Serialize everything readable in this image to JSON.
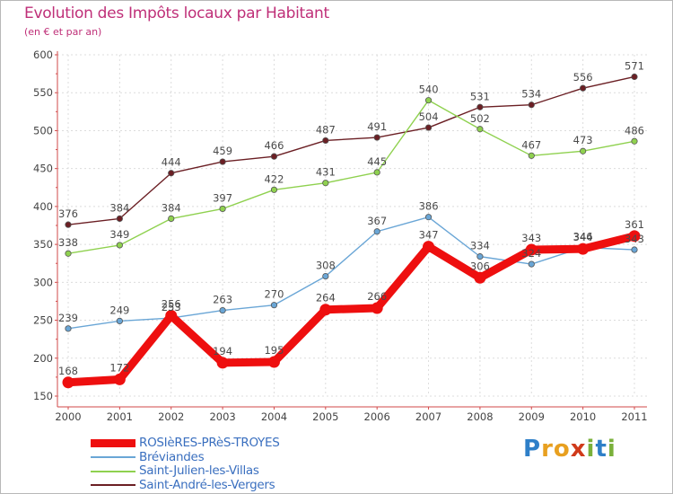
{
  "title": "Evolution des Impôts locaux par Habitant",
  "subtitle": "(en € et par an)",
  "brand": {
    "letters": [
      "P",
      "r",
      "o",
      "x",
      "i",
      "t",
      "i"
    ],
    "colors": [
      "#2e7fc8",
      "#e8a020",
      "#e8a020",
      "#d03a1a",
      "#7ab03a",
      "#2e7fc8",
      "#7ab03a"
    ]
  },
  "chart_data": {
    "type": "line",
    "title": "Evolution des Impôts locaux par Habitant",
    "subtitle": "(en € et par an)",
    "xlabel": "",
    "ylabel": "",
    "categories": [
      "2000",
      "2001",
      "2002",
      "2003",
      "2004",
      "2005",
      "2006",
      "2007",
      "2008",
      "2009",
      "2010",
      "2011"
    ],
    "ylim": [
      150,
      600
    ],
    "yticks": [
      "150",
      "200",
      "250",
      "300",
      "350",
      "400",
      "450",
      "500",
      "550",
      "600"
    ],
    "grid": true,
    "legend": "bottom-left",
    "series": [
      {
        "name": "Saint-André-les-Vergers",
        "color": "#6b1f24",
        "emphasis": false,
        "values": [
          376,
          384,
          444,
          459,
          466,
          487,
          491,
          504,
          531,
          534,
          556,
          571
        ]
      },
      {
        "name": "Saint-Julien-les-Villas",
        "color": "#8fd14f",
        "emphasis": false,
        "values": [
          338,
          349,
          384,
          397,
          422,
          431,
          445,
          540,
          502,
          467,
          473,
          486
        ]
      },
      {
        "name": "Bréviandes",
        "color": "#6aa6d6",
        "emphasis": false,
        "values": [
          239,
          249,
          253,
          263,
          270,
          308,
          367,
          386,
          334,
          324,
          346,
          343
        ]
      },
      {
        "name": "ROSIèRES-PRèS-TROYES",
        "color": "#ee0f0f",
        "emphasis": true,
        "values": [
          168,
          172,
          256,
          194,
          195,
          264,
          266,
          347,
          306,
          343,
          344,
          361
        ]
      }
    ],
    "legend_order": [
      "ROSIèRES-PRèS-TROYES",
      "Bréviandes",
      "Saint-Julien-les-Villas",
      "Saint-André-les-Vergers"
    ]
  }
}
